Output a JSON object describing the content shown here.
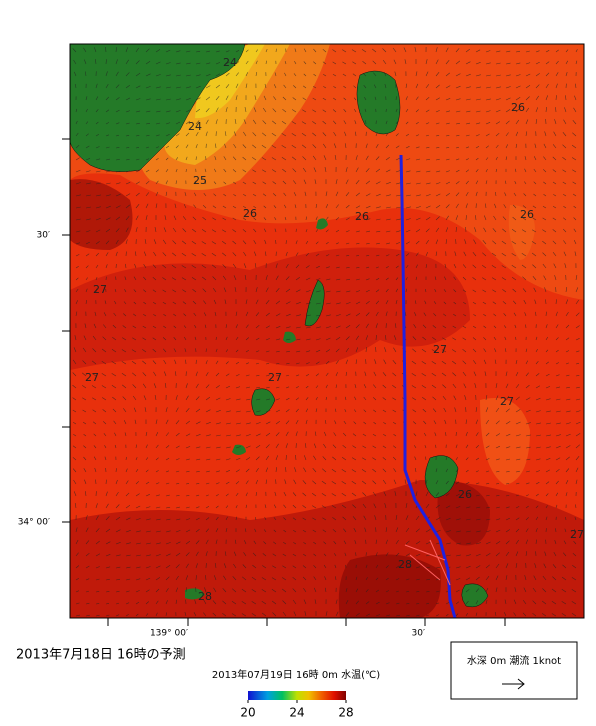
{
  "map": {
    "contour_labels": [
      "24",
      "24",
      "25",
      "26",
      "26",
      "26",
      "26",
      "27",
      "27",
      "27",
      "27",
      "27",
      "26",
      "28",
      "28",
      "27"
    ],
    "lat_labels": [
      "30′",
      "34° 00′"
    ],
    "lon_labels": [
      "139° 00′",
      "30′"
    ]
  },
  "title": "2013年7月18日  16時の予測",
  "colorbar": {
    "caption": "2013年07月19日 16時 0m 水温(℃)",
    "range": [
      20,
      28
    ],
    "ticks": [
      20,
      24,
      28
    ]
  },
  "legend": {
    "text": "水深 0m 潮流 1knot"
  }
}
